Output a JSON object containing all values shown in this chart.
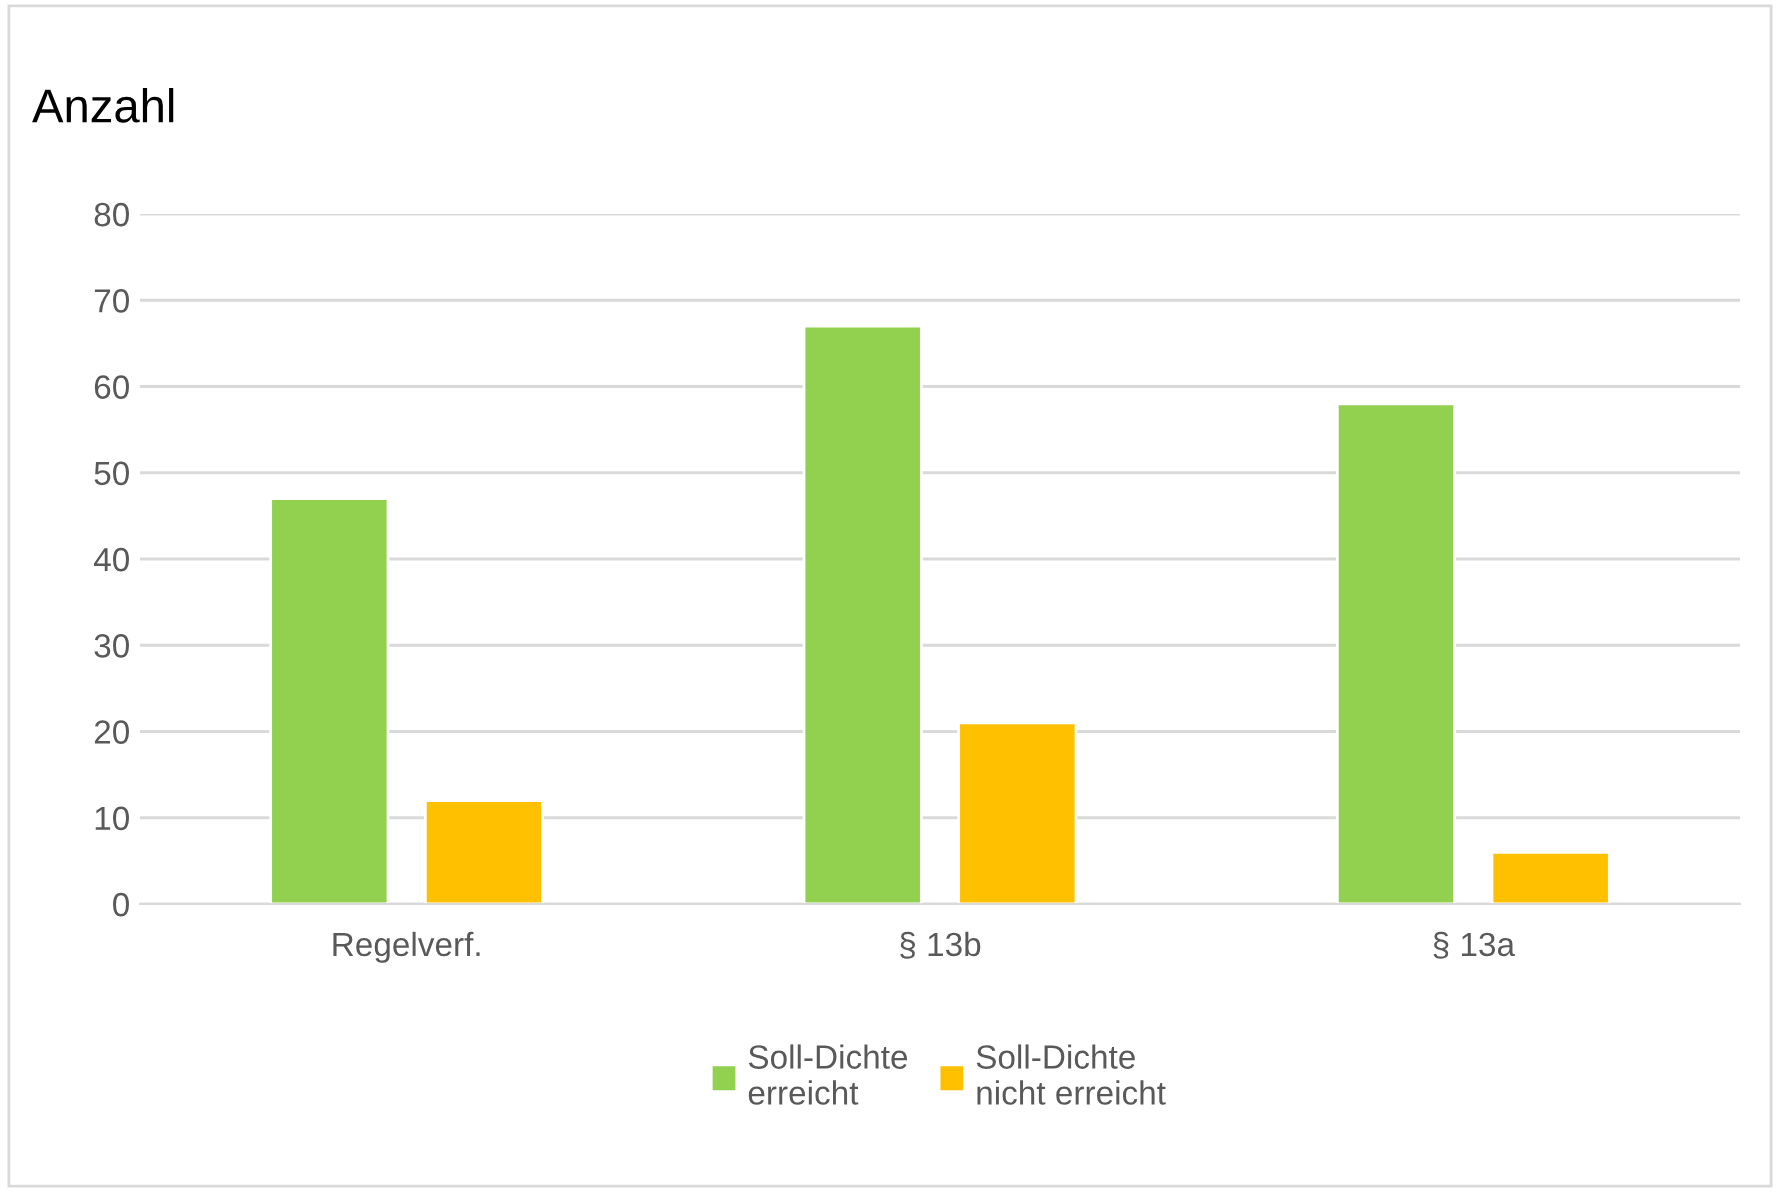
{
  "chart_data": {
    "type": "bar",
    "ylabel": "Anzahl",
    "categories": [
      "Regelverf.",
      "§ 13b",
      "§ 13a"
    ],
    "series": [
      {
        "name": "Soll-Dichte erreicht",
        "color": "#92d050",
        "values": [
          47,
          67,
          58
        ]
      },
      {
        "name": "Soll-Dichte nicht erreicht",
        "color": "#ffc000",
        "values": [
          12,
          21,
          6
        ]
      }
    ],
    "ylim": [
      0,
      80
    ],
    "yticks": [
      0,
      10,
      20,
      30,
      40,
      50,
      60,
      70,
      80
    ],
    "grid": "y",
    "legend": "bottom"
  }
}
